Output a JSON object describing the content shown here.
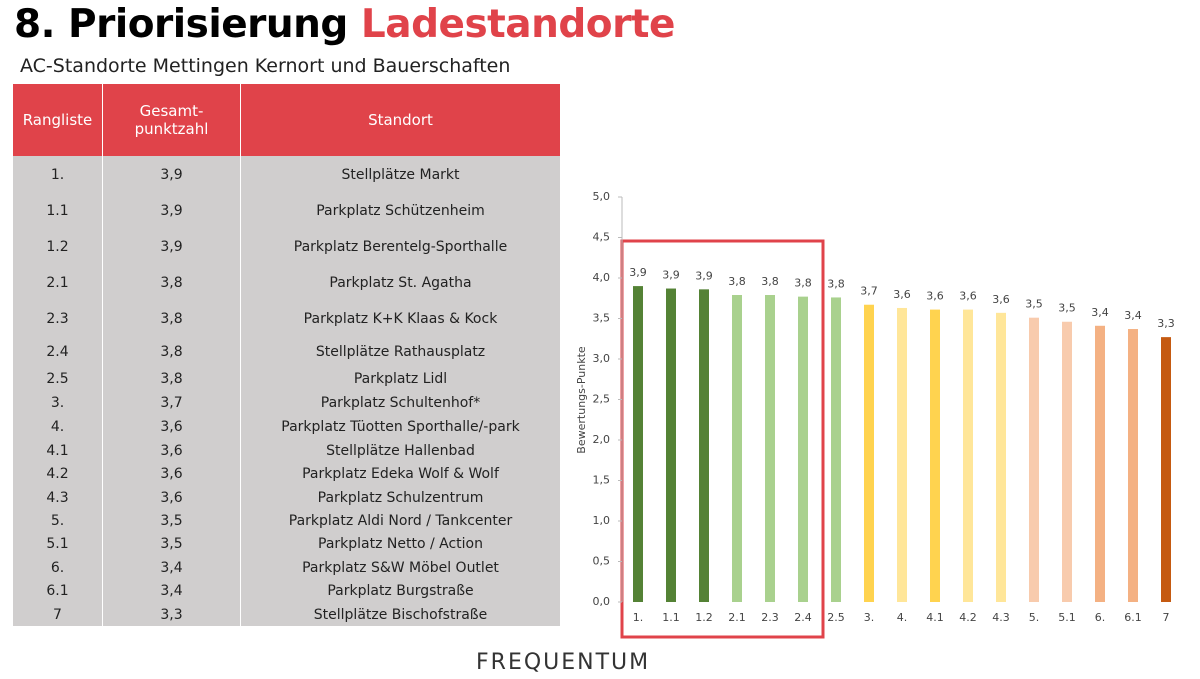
{
  "title": {
    "number": "8.",
    "main": "Priorisierung",
    "highlight": "Ladestandorte"
  },
  "subtitle": "AC-Standorte Mettingen Kernort und Bauerschaften",
  "table": {
    "header": [
      "Rangliste",
      "Gesamt-\npunktzahl",
      "Standort"
    ],
    "rows": [
      [
        "1.",
        "3,9",
        "Stellplätze Markt"
      ],
      [
        "1.1",
        "3,9",
        "Parkplatz Schützenheim"
      ],
      [
        "1.2",
        "3,9",
        "Parkplatz Berentelg-Sporthalle"
      ],
      [
        "2.1",
        "3,8",
        "Parkplatz St. Agatha"
      ],
      [
        "2.3",
        "3,8",
        "Parkplatz K+K Klaas & Kock"
      ],
      [
        "2.4",
        "3,8",
        "Stellplätze Rathausplatz"
      ],
      [
        "2.5",
        "3,8",
        "Parkplatz Lidl"
      ],
      [
        "3.",
        "3,7",
        "Parkplatz Schultenhof*"
      ],
      [
        "4.",
        "3,6",
        "Parkplatz Tüotten Sporthalle/-park"
      ],
      [
        "4.1",
        "3,6",
        "Stellplätze Hallenbad"
      ],
      [
        "4.2",
        "3,6",
        "Parkplatz Edeka Wolf & Wolf"
      ],
      [
        "4.3",
        "3,6",
        "Parkplatz Schulzentrum"
      ],
      [
        "5.",
        "3,5",
        "Parkplatz Aldi Nord / Tankcenter"
      ],
      [
        "5.1",
        "3,5",
        "Parkplatz Netto / Action"
      ],
      [
        "6.",
        "3,4",
        "Parkplatz S&W Möbel Outlet"
      ],
      [
        "6.1",
        "3,4",
        "Parkplatz Burgstraße"
      ],
      [
        "7",
        "3,3",
        "Stellplätze Bischofstraße"
      ]
    ]
  },
  "chart_data": {
    "type": "bar",
    "y_label": "Bewertungs-Punkte",
    "categories": [
      "1.",
      "1.1",
      "1.2",
      "2.1",
      "2.3",
      "2.4",
      "2.5",
      "3.",
      "4.",
      "4.1",
      "4.2",
      "4.3",
      "5.",
      "5.1",
      "6.",
      "6.1",
      "7"
    ],
    "values": [
      3.9,
      3.87,
      3.86,
      3.79,
      3.79,
      3.77,
      3.76,
      3.67,
      3.63,
      3.61,
      3.61,
      3.57,
      3.51,
      3.46,
      3.41,
      3.37,
      3.27
    ],
    "value_labels": [
      "3,9",
      "3,9",
      "3,9",
      "3,8",
      "3,8",
      "3,8",
      "3,8",
      "3,7",
      "3,6",
      "3,6",
      "3,6",
      "3,6",
      "3,5",
      "3,5",
      "3,4",
      "3,4",
      "3,3"
    ],
    "colors": [
      "#548235",
      "#548235",
      "#548235",
      "#a9d18e",
      "#a9d18e",
      "#a9d18e",
      "#a9d18e",
      "#ffd34f",
      "#ffe699",
      "#ffd34f",
      "#ffe699",
      "#ffe699",
      "#f8cbad",
      "#f8cbad",
      "#f4b183",
      "#f4b183",
      "#c55a11"
    ],
    "ylim": [
      0,
      5
    ],
    "yticks": [
      {
        "value": 0,
        "label": "0,0"
      },
      {
        "value": 0.5,
        "label": "0,5"
      },
      {
        "value": 1,
        "label": "1,0"
      },
      {
        "value": 1.5,
        "label": "1,5"
      },
      {
        "value": 2,
        "label": "2,0"
      },
      {
        "value": 2.5,
        "label": "2,5"
      },
      {
        "value": 3,
        "label": "3,0"
      },
      {
        "value": 3.5,
        "label": "3,5"
      },
      {
        "value": 4,
        "label": "4,0"
      },
      {
        "value": 4.5,
        "label": "4,5"
      },
      {
        "value": 5,
        "label": "5,0"
      }
    ]
  },
  "logo": "FREQUENTUM"
}
